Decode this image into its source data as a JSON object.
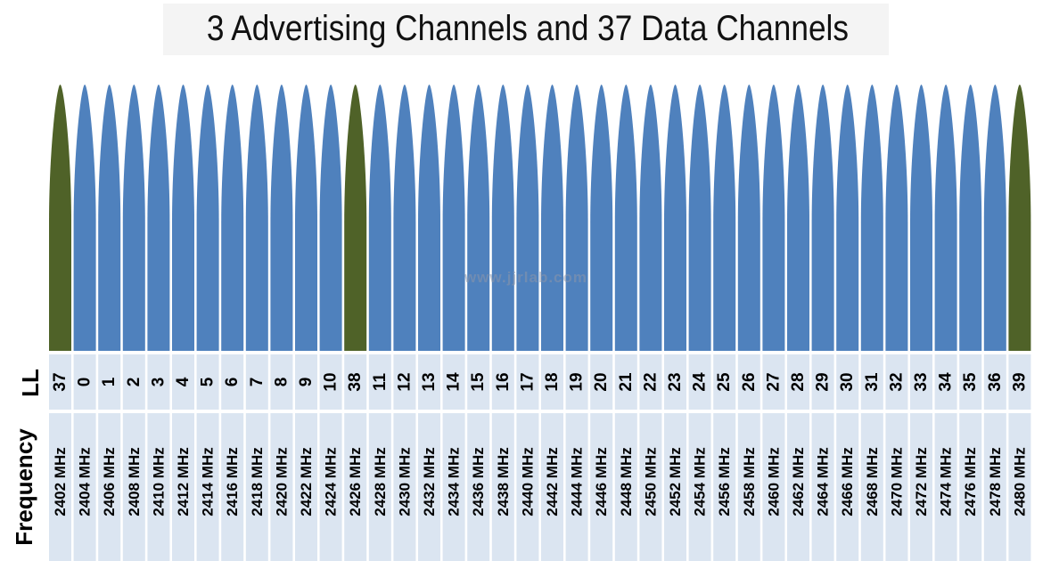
{
  "title": "3 Advertising Channels and 37 Data Channels",
  "row_labels": {
    "ll": "LL",
    "frequency": "Frequency"
  },
  "watermark": "www.jjrlab.com",
  "colors": {
    "advertising": "#4f6228",
    "data": "#4f81bd",
    "table_cell": "#dbe5f1"
  },
  "channels": [
    {
      "ll": "37",
      "freq": "2402 MHz",
      "type": "advertising"
    },
    {
      "ll": "0",
      "freq": "2404 MHz",
      "type": "data"
    },
    {
      "ll": "1",
      "freq": "2406 MHz",
      "type": "data"
    },
    {
      "ll": "2",
      "freq": "2408 MHz",
      "type": "data"
    },
    {
      "ll": "3",
      "freq": "2410 MHz",
      "type": "data"
    },
    {
      "ll": "4",
      "freq": "2412 MHz",
      "type": "data"
    },
    {
      "ll": "5",
      "freq": "2414 MHz",
      "type": "data"
    },
    {
      "ll": "6",
      "freq": "2416 MHz",
      "type": "data"
    },
    {
      "ll": "7",
      "freq": "2418 MHz",
      "type": "data"
    },
    {
      "ll": "8",
      "freq": "2420 MHz",
      "type": "data"
    },
    {
      "ll": "9",
      "freq": "2422 MHz",
      "type": "data"
    },
    {
      "ll": "10",
      "freq": "2424 MHz",
      "type": "data"
    },
    {
      "ll": "38",
      "freq": "2426 MHz",
      "type": "advertising"
    },
    {
      "ll": "11",
      "freq": "2428 MHz",
      "type": "data"
    },
    {
      "ll": "12",
      "freq": "2430 MHz",
      "type": "data"
    },
    {
      "ll": "13",
      "freq": "2432 MHz",
      "type": "data"
    },
    {
      "ll": "14",
      "freq": "2434 MHz",
      "type": "data"
    },
    {
      "ll": "15",
      "freq": "2436 MHz",
      "type": "data"
    },
    {
      "ll": "16",
      "freq": "2438 MHz",
      "type": "data"
    },
    {
      "ll": "17",
      "freq": "2440 MHz",
      "type": "data"
    },
    {
      "ll": "18",
      "freq": "2442 MHz",
      "type": "data"
    },
    {
      "ll": "19",
      "freq": "2444 MHz",
      "type": "data"
    },
    {
      "ll": "20",
      "freq": "2446 MHz",
      "type": "data"
    },
    {
      "ll": "21",
      "freq": "2448 MHz",
      "type": "data"
    },
    {
      "ll": "22",
      "freq": "2450 MHz",
      "type": "data"
    },
    {
      "ll": "23",
      "freq": "2452 MHz",
      "type": "data"
    },
    {
      "ll": "24",
      "freq": "2454 MHz",
      "type": "data"
    },
    {
      "ll": "25",
      "freq": "2456 MHz",
      "type": "data"
    },
    {
      "ll": "26",
      "freq": "2458 MHz",
      "type": "data"
    },
    {
      "ll": "27",
      "freq": "2460 MHz",
      "type": "data"
    },
    {
      "ll": "28",
      "freq": "2462 MHz",
      "type": "data"
    },
    {
      "ll": "29",
      "freq": "2464 MHz",
      "type": "data"
    },
    {
      "ll": "30",
      "freq": "2466 MHz",
      "type": "data"
    },
    {
      "ll": "31",
      "freq": "2468 MHz",
      "type": "data"
    },
    {
      "ll": "32",
      "freq": "2470 MHz",
      "type": "data"
    },
    {
      "ll": "33",
      "freq": "2472 MHz",
      "type": "data"
    },
    {
      "ll": "34",
      "freq": "2474 MHz",
      "type": "data"
    },
    {
      "ll": "35",
      "freq": "2476 MHz",
      "type": "data"
    },
    {
      "ll": "36",
      "freq": "2478 MHz",
      "type": "data"
    },
    {
      "ll": "39",
      "freq": "2480 MHz",
      "type": "advertising"
    }
  ]
}
